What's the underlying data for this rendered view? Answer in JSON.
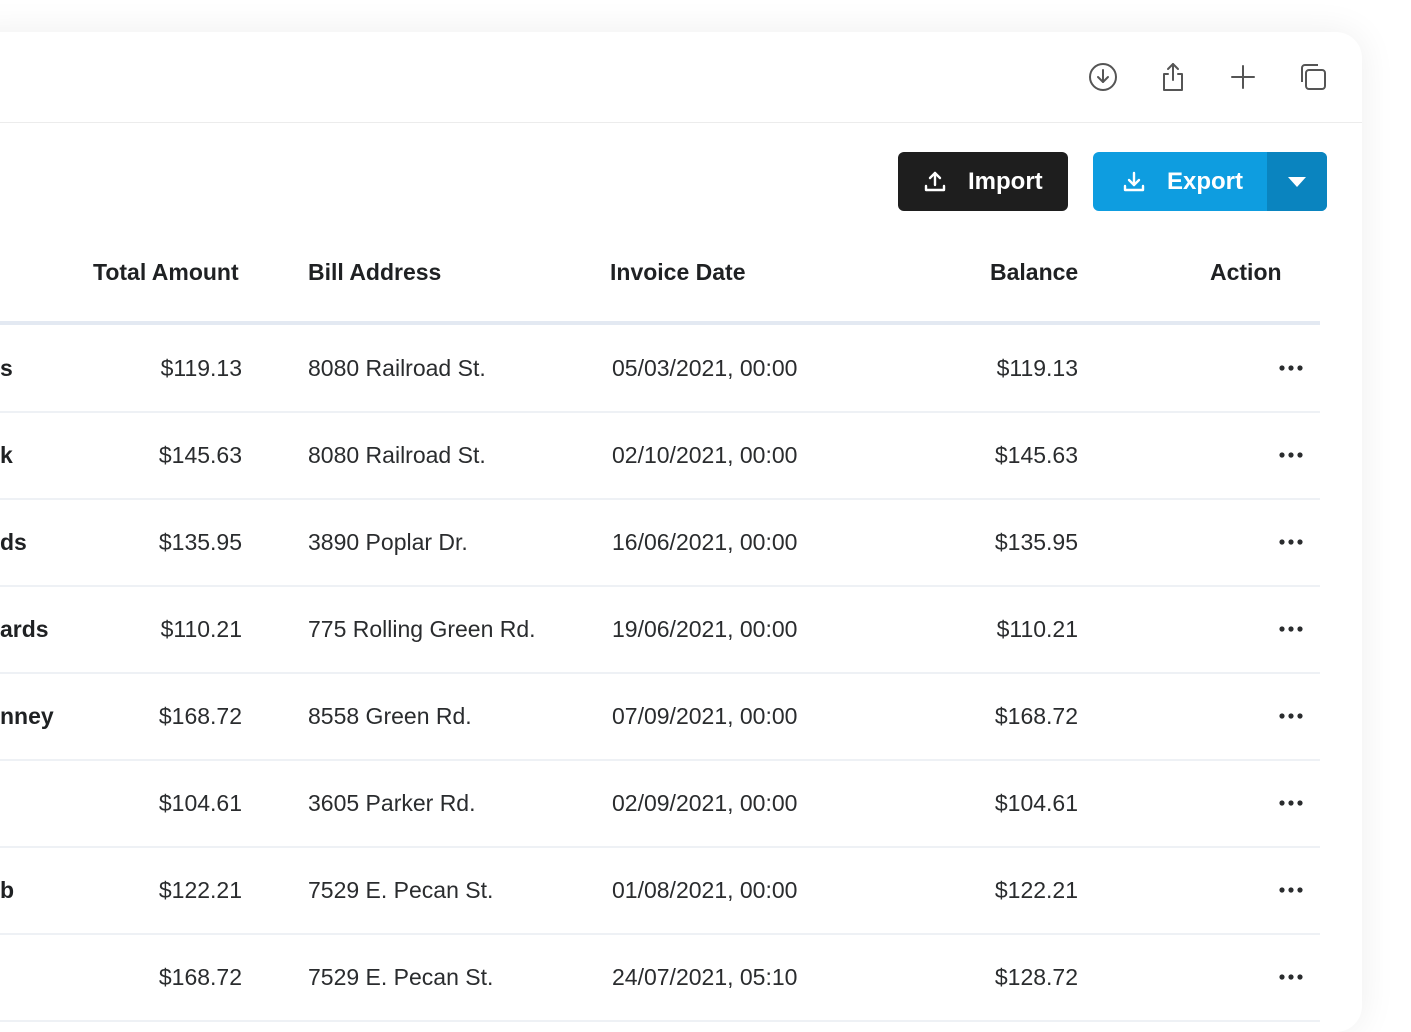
{
  "toolbar": {
    "icons": [
      "download-circle-icon",
      "share-icon",
      "plus-icon",
      "copy-icon"
    ]
  },
  "actions": {
    "import_label": "Import",
    "export_label": "Export"
  },
  "table": {
    "columns": [
      "Total Amount",
      "Bill Address",
      "Invoice Date",
      "Balance",
      "Action"
    ],
    "rows": [
      {
        "name": "s",
        "total": "$119.13",
        "address": "8080 Railroad St.",
        "date": "05/03/2021, 00:00",
        "balance": "$119.13"
      },
      {
        "name": "k",
        "total": "$145.63",
        "address": "8080 Railroad St.",
        "date": "02/10/2021, 00:00",
        "balance": "$145.63"
      },
      {
        "name": "ds",
        "total": "$135.95",
        "address": "3890 Poplar Dr.",
        "date": "16/06/2021, 00:00",
        "balance": "$135.95"
      },
      {
        "name": "ards",
        "total": "$110.21",
        "address": "775 Rolling Green Rd.",
        "date": "19/06/2021, 00:00",
        "balance": "$110.21"
      },
      {
        "name": "nney",
        "total": "$168.72",
        "address": "8558 Green Rd.",
        "date": "07/09/2021, 00:00",
        "balance": "$168.72"
      },
      {
        "name": "",
        "total": "$104.61",
        "address": "3605 Parker Rd.",
        "date": "02/09/2021, 00:00",
        "balance": "$104.61"
      },
      {
        "name": "b",
        "total": "$122.21",
        "address": "7529 E. Pecan St.",
        "date": "01/08/2021, 00:00",
        "balance": "$122.21"
      },
      {
        "name": "",
        "total": "$168.72",
        "address": "7529 E. Pecan St.",
        "date": "24/07/2021, 05:10",
        "balance": "$128.72"
      }
    ]
  },
  "colors": {
    "export_button": "#0e9de0",
    "export_caret": "#0a84bf",
    "import_button": "#1e1e1e"
  }
}
